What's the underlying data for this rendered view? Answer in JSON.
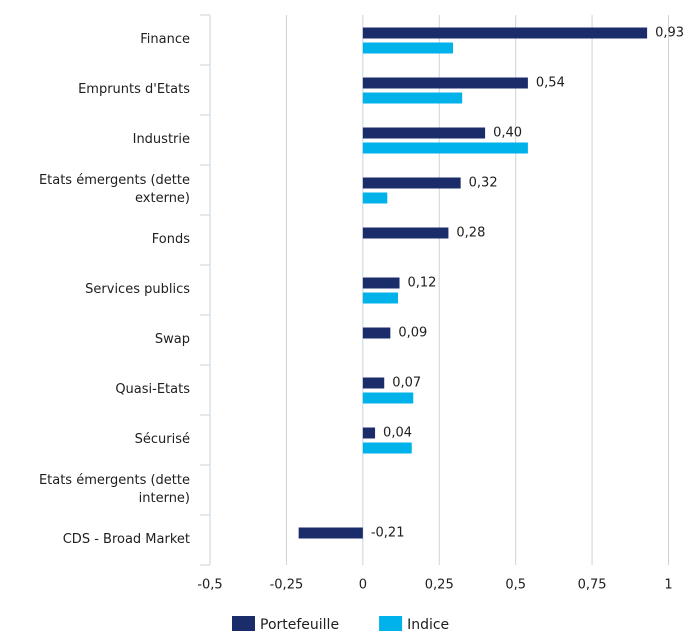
{
  "chart_data": {
    "type": "bar",
    "orientation": "horizontal",
    "categories": [
      "Finance",
      "Emprunts d'Etats",
      "Industrie",
      "Etats émergents (dette externe)",
      "Fonds",
      "Services publics",
      "Swap",
      "Quasi-Etats",
      "Sécurisé",
      "Etats émergents (dette interne)",
      "CDS - Broad Market"
    ],
    "series": [
      {
        "name": "Portefeuille",
        "color": "#1b2c6b",
        "values": [
          0.93,
          0.54,
          0.4,
          0.32,
          0.28,
          0.12,
          0.09,
          0.07,
          0.04,
          null,
          -0.21
        ],
        "value_labels": [
          "0,93",
          "0,54",
          "0,40",
          "0,32",
          "0,28",
          "0,12",
          "0,09",
          "0,07",
          "0,04",
          null,
          "-0,21"
        ]
      },
      {
        "name": "Indice",
        "color": "#00b2ea",
        "values": [
          0.295,
          0.325,
          0.54,
          0.08,
          null,
          0.115,
          null,
          0.165,
          0.16,
          null,
          null
        ]
      }
    ],
    "xlim": [
      -0.5,
      1
    ],
    "xticks": [
      {
        "value": -0.5,
        "label": "-0,5"
      },
      {
        "value": -0.25,
        "label": "-0,25"
      },
      0,
      {
        "value": 0.25,
        "label": "0,25"
      },
      {
        "value": 0.5,
        "label": "0,5"
      },
      {
        "value": 0.75,
        "label": "0,75"
      },
      1
    ],
    "grid": true,
    "legend": "bottom"
  }
}
